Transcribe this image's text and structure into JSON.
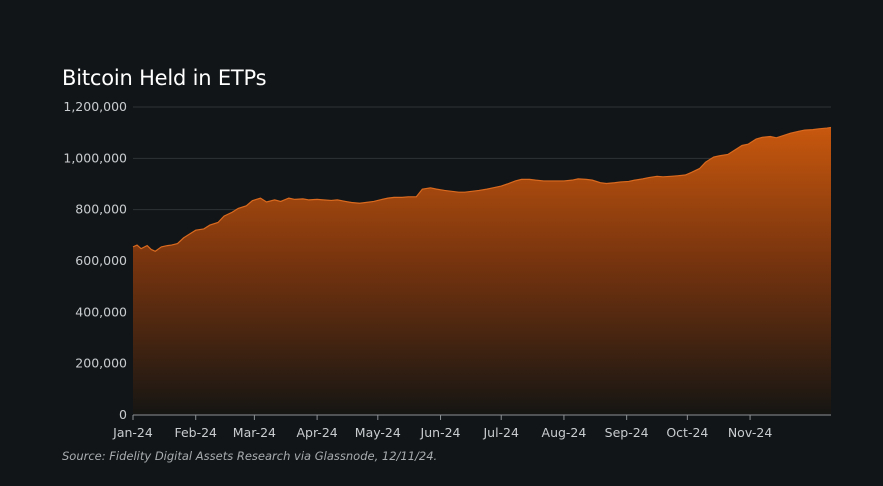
{
  "chart_data": {
    "type": "area",
    "title": "Bitcoin Held in ETPs",
    "xlabel": "",
    "ylabel": "",
    "ylim": [
      0,
      1200000
    ],
    "yticks": [
      0,
      200000,
      400000,
      600000,
      800000,
      1000000,
      1200000
    ],
    "ytick_labels": [
      "0",
      "200,000",
      "400,000",
      "600,000",
      "800,000",
      "1,000,000",
      "1,200,000"
    ],
    "xlim": [
      "2024-01-01",
      "2024-12-11"
    ],
    "xtick_labels": [
      "Jan-24",
      "Feb-24",
      "Mar-24",
      "Apr-24",
      "May-24",
      "Jun-24",
      "Jul-24",
      "Aug-24",
      "Sep-24",
      "Oct-24",
      "Nov-24"
    ],
    "xtick_dates": [
      "2024-01-01",
      "2024-02-01",
      "2024-03-01",
      "2024-04-01",
      "2024-05-01",
      "2024-06-01",
      "2024-07-01",
      "2024-08-01",
      "2024-09-01",
      "2024-10-01",
      "2024-11-01"
    ],
    "grid": true,
    "fill_colors": {
      "top": "#c8580e",
      "bottom": "#151513"
    },
    "line_color": "#d96a1f",
    "x": [
      "2024-01-01",
      "2024-01-03",
      "2024-01-05",
      "2024-01-08",
      "2024-01-10",
      "2024-01-12",
      "2024-01-15",
      "2024-01-18",
      "2024-01-20",
      "2024-01-23",
      "2024-01-26",
      "2024-01-29",
      "2024-02-01",
      "2024-02-05",
      "2024-02-08",
      "2024-02-12",
      "2024-02-15",
      "2024-02-19",
      "2024-02-22",
      "2024-02-26",
      "2024-02-29",
      "2024-03-04",
      "2024-03-07",
      "2024-03-11",
      "2024-03-14",
      "2024-03-18",
      "2024-03-21",
      "2024-03-25",
      "2024-03-28",
      "2024-04-01",
      "2024-04-04",
      "2024-04-08",
      "2024-04-11",
      "2024-04-15",
      "2024-04-18",
      "2024-04-22",
      "2024-04-25",
      "2024-04-29",
      "2024-05-02",
      "2024-05-06",
      "2024-05-09",
      "2024-05-13",
      "2024-05-16",
      "2024-05-20",
      "2024-05-23",
      "2024-05-27",
      "2024-05-30",
      "2024-06-03",
      "2024-06-06",
      "2024-06-10",
      "2024-06-13",
      "2024-06-17",
      "2024-06-20",
      "2024-06-24",
      "2024-06-27",
      "2024-07-01",
      "2024-07-04",
      "2024-07-08",
      "2024-07-11",
      "2024-07-15",
      "2024-07-18",
      "2024-07-22",
      "2024-07-25",
      "2024-07-29",
      "2024-08-01",
      "2024-08-05",
      "2024-08-08",
      "2024-08-12",
      "2024-08-15",
      "2024-08-19",
      "2024-08-22",
      "2024-08-26",
      "2024-08-29",
      "2024-09-02",
      "2024-09-05",
      "2024-09-09",
      "2024-09-12",
      "2024-09-16",
      "2024-09-19",
      "2024-09-23",
      "2024-09-26",
      "2024-09-30",
      "2024-10-03",
      "2024-10-07",
      "2024-10-10",
      "2024-10-14",
      "2024-10-17",
      "2024-10-21",
      "2024-10-24",
      "2024-10-28",
      "2024-10-31",
      "2024-11-04",
      "2024-11-07",
      "2024-11-11",
      "2024-11-14",
      "2024-11-18",
      "2024-11-21",
      "2024-11-25",
      "2024-11-28",
      "2024-12-02",
      "2024-12-05",
      "2024-12-09",
      "2024-12-11"
    ],
    "series": [
      {
        "values": [
          655000,
          662000,
          648000,
          660000,
          645000,
          638000,
          655000,
          660000,
          662000,
          668000,
          690000,
          705000,
          720000,
          725000,
          740000,
          750000,
          775000,
          790000,
          805000,
          815000,
          835000,
          845000,
          830000,
          838000,
          832000,
          845000,
          840000,
          842000,
          838000,
          840000,
          838000,
          836000,
          838000,
          832000,
          828000,
          825000,
          828000,
          832000,
          838000,
          845000,
          848000,
          848000,
          850000,
          850000,
          880000,
          885000,
          880000,
          875000,
          872000,
          868000,
          868000,
          872000,
          875000,
          880000,
          885000,
          892000,
          900000,
          912000,
          918000,
          918000,
          915000,
          912000,
          912000,
          912000,
          912000,
          915000,
          920000,
          918000,
          915000,
          905000,
          902000,
          905000,
          908000,
          910000,
          915000,
          920000,
          925000,
          930000,
          928000,
          930000,
          932000,
          935000,
          945000,
          960000,
          985000,
          1005000,
          1010000,
          1015000,
          1030000,
          1050000,
          1055000,
          1075000,
          1082000,
          1085000,
          1080000,
          1090000,
          1098000,
          1105000,
          1110000,
          1112000,
          1115000,
          1118000,
          1120000
        ]
      }
    ]
  },
  "source": "Source: Fidelity Digital Assets Research via Glassnode, 12/11/24."
}
